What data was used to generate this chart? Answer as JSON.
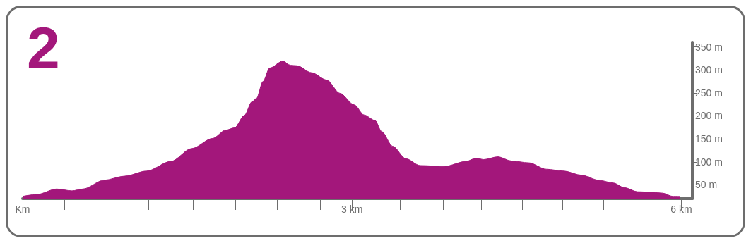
{
  "chart_data": {
    "type": "area",
    "title": "2",
    "x": [
      0,
      0.13,
      0.31,
      0.45,
      0.55,
      0.74,
      0.93,
      1.13,
      1.35,
      1.54,
      1.73,
      1.85,
      1.93,
      2.02,
      2.09,
      2.13,
      2.19,
      2.25,
      2.37,
      2.44,
      2.5,
      2.63,
      2.77,
      2.89,
      3.02,
      3.11,
      3.21,
      3.27,
      3.37,
      3.49,
      3.62,
      3.84,
      4.04,
      4.13,
      4.2,
      4.33,
      4.45,
      4.61,
      4.77,
      4.93,
      5.09,
      5.25,
      5.38,
      5.48,
      5.6,
      5.73,
      5.83,
      5.92,
      5.99
    ],
    "series": [
      {
        "color": "#a3177b",
        "values": [
          25,
          29,
          41,
          37,
          41,
          60,
          69,
          80,
          101,
          129,
          151,
          169,
          174,
          201,
          231,
          238,
          275,
          304,
          319,
          310,
          309,
          294,
          278,
          249,
          224,
          202,
          190,
          166,
          134,
          107,
          92,
          90,
          101,
          108,
          105,
          111,
          102,
          98,
          84,
          80,
          71,
          60,
          54,
          44,
          35,
          34,
          32,
          25,
          25
        ]
      }
    ],
    "xlim": [
      0,
      6.1
    ],
    "ylim": [
      20,
      360
    ],
    "xticks": [
      {
        "value": 0,
        "label": "Km"
      },
      {
        "value": 0.38,
        "label": null
      },
      {
        "value": 0.75,
        "label": null
      },
      {
        "value": 1.15,
        "label": null
      },
      {
        "value": 1.55,
        "label": null
      },
      {
        "value": 1.94,
        "label": null
      },
      {
        "value": 2.32,
        "label": null
      },
      {
        "value": 2.71,
        "label": null
      },
      {
        "value": 3,
        "label": "3 km"
      },
      {
        "value": 3.44,
        "label": null
      },
      {
        "value": 3.83,
        "label": null
      },
      {
        "value": 4.18,
        "label": null
      },
      {
        "value": 4.55,
        "label": null
      },
      {
        "value": 4.92,
        "label": null
      },
      {
        "value": 5.29,
        "label": null
      },
      {
        "value": 5.66,
        "label": null
      },
      {
        "value": 6,
        "label": "6 km"
      }
    ],
    "yticks": [
      {
        "value": 50,
        "label": "50 m"
      },
      {
        "value": 100,
        "label": "100 m"
      },
      {
        "value": 150,
        "label": "150 m"
      },
      {
        "value": 200,
        "label": "200 m"
      },
      {
        "value": 250,
        "label": "250 m"
      },
      {
        "value": 300,
        "label": "300 m"
      },
      {
        "value": 350,
        "label": "350 m"
      }
    ],
    "grid": false
  }
}
